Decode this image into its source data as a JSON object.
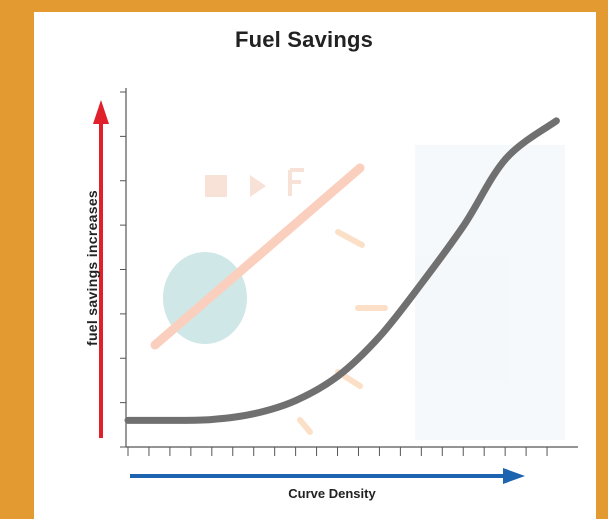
{
  "colors": {
    "frame": "#e39b31",
    "curve": "#707070",
    "y_arrow": "#e0202a",
    "x_arrow": "#1c63b0",
    "axis": "#555555",
    "gauge_needle": "#f6a98a",
    "gauge_marks": "#f8c79b",
    "globe": "#a9d4d5"
  },
  "chart_data": {
    "type": "line",
    "title": "Fuel Savings",
    "xlabel": "Curve Density",
    "ylabel": "fuel savings increases",
    "xlim": [
      0,
      10
    ],
    "ylim": [
      0,
      8
    ],
    "grid": false,
    "legend": "none",
    "x_ticks": [
      0,
      1,
      2,
      3,
      4,
      5,
      6,
      7,
      8,
      9,
      10
    ],
    "y_ticks": [
      0,
      1,
      2,
      3,
      4,
      5,
      6,
      7,
      8
    ],
    "series": [
      {
        "values": [
          {
            "x": 0.0,
            "y": 0.6
          },
          {
            "x": 1.0,
            "y": 0.6
          },
          {
            "x": 2.0,
            "y": 0.62
          },
          {
            "x": 3.0,
            "y": 0.75
          },
          {
            "x": 4.0,
            "y": 1.05
          },
          {
            "x": 5.0,
            "y": 1.6
          },
          {
            "x": 6.0,
            "y": 2.5
          },
          {
            "x": 7.0,
            "y": 3.7
          },
          {
            "x": 8.0,
            "y": 5.0
          },
          {
            "x": 9.0,
            "y": 6.5
          },
          {
            "x": 10.2,
            "y": 7.35
          }
        ]
      }
    ],
    "background_graphic": "faded fuel-gauge-icon with needle and globe"
  }
}
